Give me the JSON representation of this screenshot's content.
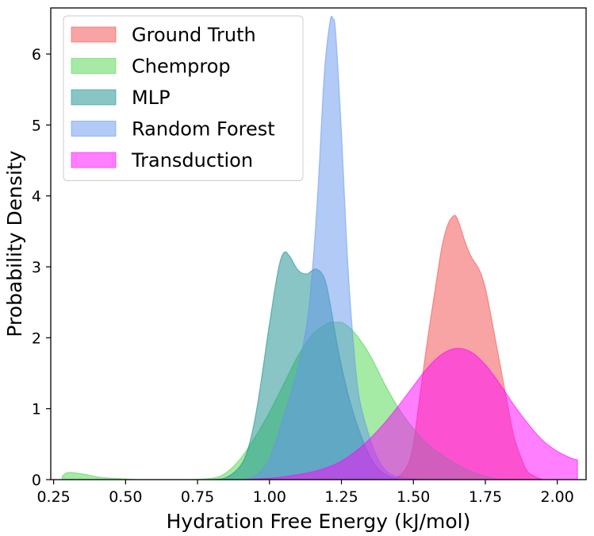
{
  "chart_data": {
    "type": "area",
    "xlabel": "Hydration Free Energy (kJ/mol)",
    "ylabel": "Probability Density",
    "xlim": [
      0.24,
      2.1
    ],
    "ylim": [
      0,
      6.65
    ],
    "xticks": [
      0.25,
      0.5,
      0.75,
      1.0,
      1.25,
      1.5,
      1.75,
      2.0
    ],
    "xtick_labels": [
      "0.25",
      "0.50",
      "0.75",
      "1.00",
      "1.25",
      "1.50",
      "1.75",
      "2.00"
    ],
    "yticks": [
      0,
      1,
      2,
      3,
      4,
      5,
      6
    ],
    "ytick_labels": [
      "0",
      "1",
      "2",
      "3",
      "4",
      "5",
      "6"
    ],
    "grid": false,
    "legend_position": "top-left",
    "series": [
      {
        "name": "Ground Truth",
        "color": "#f44a4a",
        "x": [
          1.42,
          1.45,
          1.48,
          1.5,
          1.52,
          1.55,
          1.58,
          1.6,
          1.62,
          1.64,
          1.65,
          1.66,
          1.68,
          1.7,
          1.73,
          1.75,
          1.77,
          1.8,
          1.83,
          1.85,
          1.88,
          1.9,
          1.93,
          1.95
        ],
        "values": [
          0.0,
          0.05,
          0.2,
          0.5,
          1.1,
          2.0,
          2.8,
          3.3,
          3.6,
          3.72,
          3.7,
          3.6,
          3.35,
          3.15,
          2.95,
          2.7,
          2.3,
          1.65,
          1.0,
          0.6,
          0.25,
          0.1,
          0.03,
          0.0
        ]
      },
      {
        "name": "Chemprop",
        "color": "#4bd64b",
        "x": [
          0.28,
          0.3,
          0.35,
          0.4,
          0.45,
          0.5,
          0.55,
          0.6,
          0.7,
          0.8,
          0.85,
          0.9,
          0.95,
          1.0,
          1.05,
          1.1,
          1.15,
          1.2,
          1.23,
          1.26,
          1.3,
          1.35,
          1.4,
          1.45,
          1.5,
          1.55,
          1.6,
          1.65,
          1.7,
          1.75,
          1.8
        ],
        "values": [
          0.05,
          0.1,
          0.08,
          0.04,
          0.02,
          0.01,
          0.0,
          0.0,
          0.0,
          0.02,
          0.1,
          0.3,
          0.6,
          0.95,
          1.35,
          1.75,
          2.05,
          2.2,
          2.22,
          2.2,
          2.05,
          1.75,
          1.35,
          1.0,
          0.72,
          0.5,
          0.35,
          0.22,
          0.12,
          0.05,
          0.0
        ]
      },
      {
        "name": "MLP",
        "color": "#148c8c",
        "x": [
          0.8,
          0.85,
          0.9,
          0.93,
          0.96,
          1.0,
          1.03,
          1.05,
          1.07,
          1.1,
          1.13,
          1.16,
          1.19,
          1.21,
          1.24,
          1.28,
          1.32,
          1.36,
          1.4,
          1.45
        ],
        "values": [
          0.0,
          0.03,
          0.2,
          0.5,
          1.1,
          2.2,
          2.95,
          3.2,
          3.15,
          2.95,
          2.9,
          2.97,
          2.85,
          2.5,
          1.8,
          1.1,
          0.6,
          0.25,
          0.08,
          0.0
        ]
      },
      {
        "name": "Random Forest",
        "color": "#6495ed",
        "x": [
          0.9,
          0.95,
          1.0,
          1.05,
          1.1,
          1.13,
          1.15,
          1.17,
          1.19,
          1.21,
          1.22,
          1.23,
          1.25,
          1.27,
          1.29,
          1.31,
          1.34,
          1.37,
          1.4,
          1.43,
          1.48,
          1.55
        ],
        "values": [
          0.0,
          0.05,
          0.3,
          0.9,
          1.6,
          2.2,
          3.0,
          4.2,
          5.7,
          6.45,
          6.5,
          6.3,
          4.9,
          3.2,
          2.0,
          1.2,
          0.7,
          0.35,
          0.15,
          0.06,
          0.02,
          0.0
        ]
      },
      {
        "name": "Transduction",
        "color": "#ff00ff",
        "x": [
          0.9,
          0.95,
          1.0,
          1.05,
          1.1,
          1.15,
          1.2,
          1.25,
          1.3,
          1.35,
          1.4,
          1.45,
          1.5,
          1.55,
          1.6,
          1.65,
          1.7,
          1.75,
          1.8,
          1.85,
          1.9,
          1.95,
          2.0,
          2.05,
          2.07
        ],
        "values": [
          0.0,
          0.01,
          0.02,
          0.04,
          0.07,
          0.11,
          0.17,
          0.26,
          0.4,
          0.58,
          0.8,
          1.05,
          1.32,
          1.58,
          1.77,
          1.85,
          1.8,
          1.62,
          1.35,
          1.05,
          0.78,
          0.55,
          0.4,
          0.3,
          0.28
        ]
      }
    ]
  }
}
